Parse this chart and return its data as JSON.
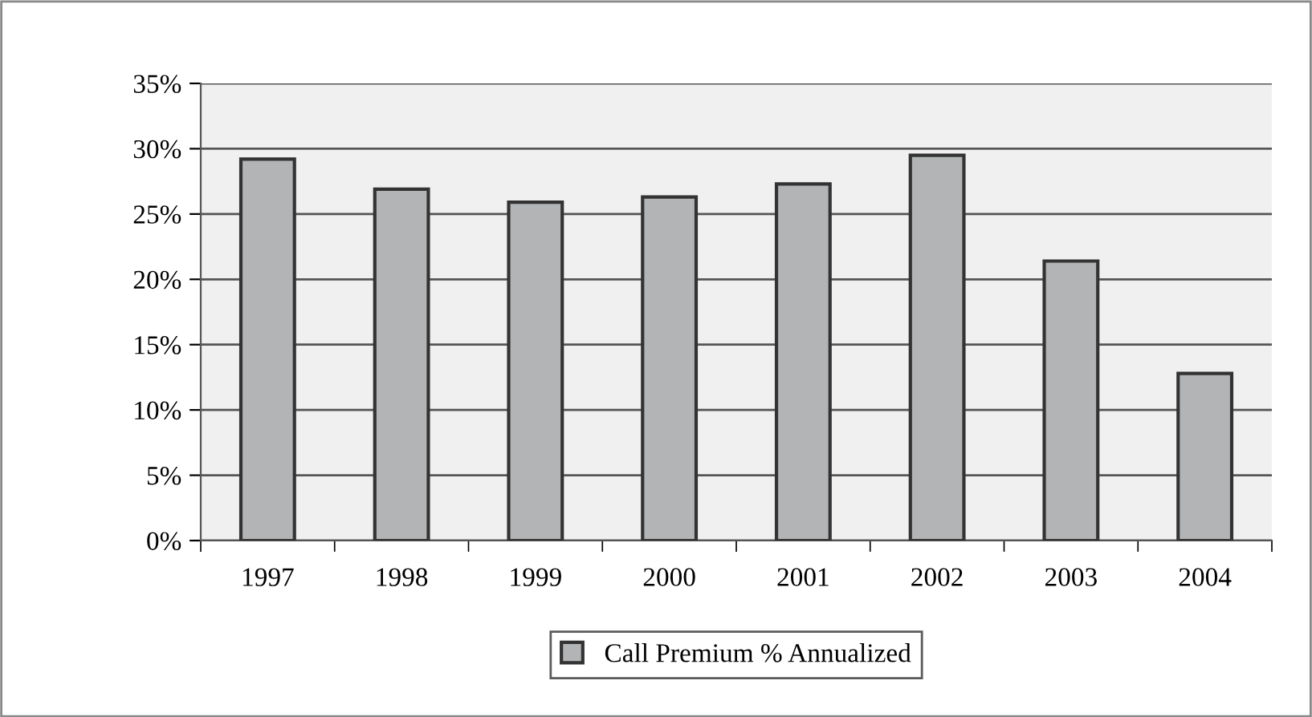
{
  "chart_data": {
    "type": "bar",
    "categories": [
      "1997",
      "1998",
      "1999",
      "2000",
      "2001",
      "2002",
      "2003",
      "2004"
    ],
    "series": [
      {
        "name": "Call Premium % Annualized",
        "color": "#b3b4b6",
        "values": [
          29.2,
          26.9,
          25.9,
          26.3,
          27.3,
          29.5,
          21.4,
          12.8
        ]
      }
    ],
    "ylim": [
      0,
      35
    ],
    "yticks": [
      {
        "value": 0,
        "label": "0%"
      },
      {
        "value": 5,
        "label": "5%"
      },
      {
        "value": 10,
        "label": "10%"
      },
      {
        "value": 15,
        "label": "15%"
      },
      {
        "value": 20,
        "label": "20%"
      },
      {
        "value": 25,
        "label": "25%"
      },
      {
        "value": 30,
        "label": "30%"
      },
      {
        "value": 35,
        "label": "35%"
      }
    ],
    "grid": "y",
    "legend": "bottom"
  }
}
